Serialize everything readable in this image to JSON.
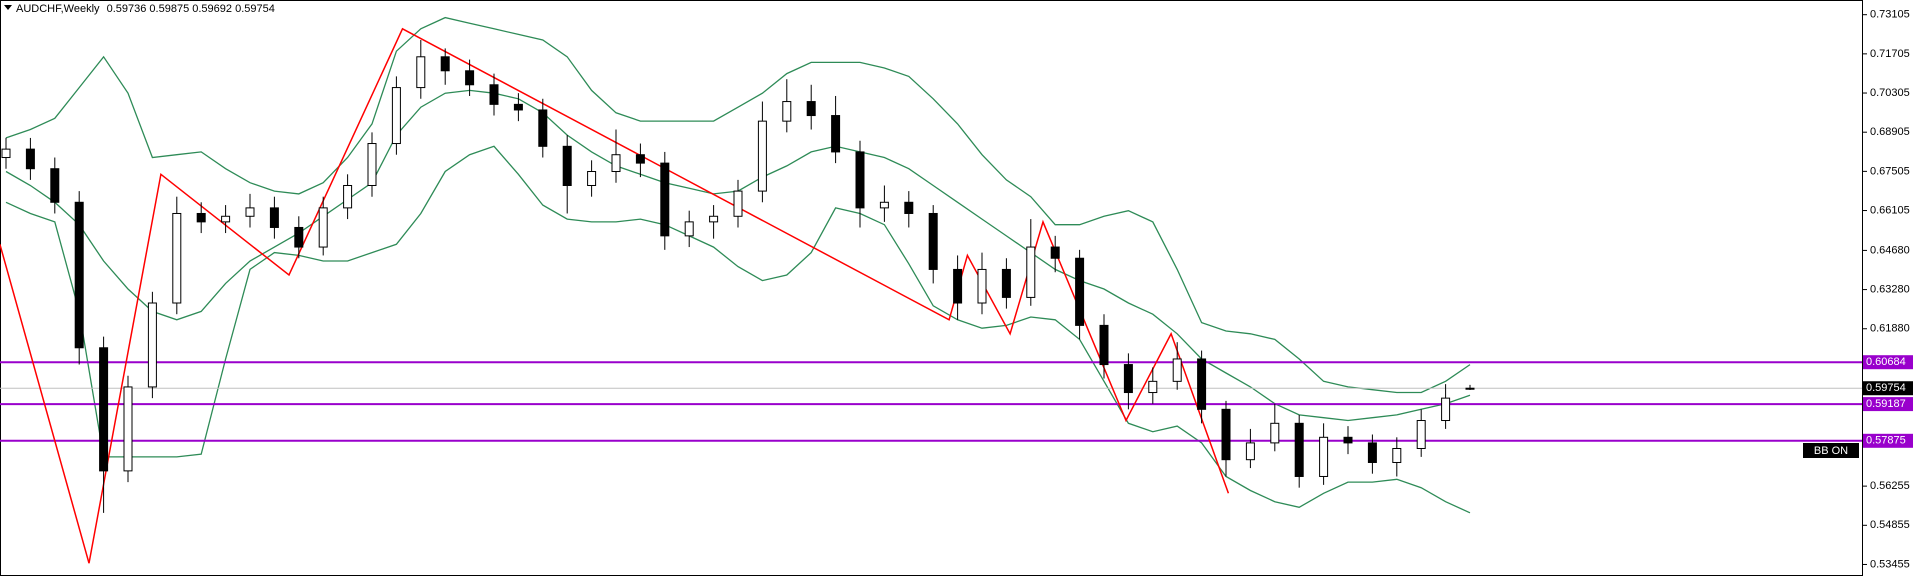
{
  "chart_data": {
    "type": "candlestick",
    "title": "AUDCHF,Weekly",
    "open": [
      0.68,
      0.683,
      0.676,
      0.664,
      0.612,
      0.568,
      0.598,
      0.628,
      0.66,
      0.657,
      0.659,
      0.662,
      0.655,
      0.648,
      0.662,
      0.67,
      0.685,
      0.705,
      0.716,
      0.711,
      0.706,
      0.699,
      0.697,
      0.684,
      0.67,
      0.675,
      0.681,
      0.678,
      0.652,
      0.657,
      0.659,
      0.668,
      0.693,
      0.7,
      0.695,
      0.682,
      0.662,
      0.664,
      0.66,
      0.64,
      0.628,
      0.64,
      0.63,
      0.648,
      0.644,
      0.62,
      0.606,
      0.596,
      0.6,
      0.608,
      0.59,
      0.572,
      0.578,
      0.585,
      0.566,
      0.58,
      0.578,
      0.571,
      0.576,
      0.586,
      0.59736
    ],
    "high": [
      0.687,
      0.687,
      0.68,
      0.668,
      0.616,
      0.602,
      0.632,
      0.666,
      0.664,
      0.663,
      0.667,
      0.666,
      0.659,
      0.666,
      0.674,
      0.689,
      0.709,
      0.722,
      0.719,
      0.715,
      0.71,
      0.703,
      0.701,
      0.688,
      0.679,
      0.69,
      0.685,
      0.682,
      0.661,
      0.663,
      0.672,
      0.7,
      0.708,
      0.706,
      0.702,
      0.686,
      0.67,
      0.668,
      0.663,
      0.645,
      0.646,
      0.644,
      0.658,
      0.652,
      0.647,
      0.624,
      0.61,
      0.605,
      0.614,
      0.611,
      0.593,
      0.583,
      0.592,
      0.588,
      0.585,
      0.584,
      0.581,
      0.58,
      0.59,
      0.599,
      0.59875
    ],
    "low": [
      0.676,
      0.672,
      0.66,
      0.606,
      0.553,
      0.564,
      0.594,
      0.624,
      0.653,
      0.653,
      0.655,
      0.651,
      0.644,
      0.645,
      0.658,
      0.666,
      0.681,
      0.701,
      0.706,
      0.702,
      0.695,
      0.693,
      0.68,
      0.66,
      0.666,
      0.671,
      0.673,
      0.647,
      0.648,
      0.651,
      0.655,
      0.664,
      0.689,
      0.69,
      0.678,
      0.655,
      0.657,
      0.655,
      0.635,
      0.622,
      0.624,
      0.626,
      0.627,
      0.639,
      0.615,
      0.601,
      0.59,
      0.592,
      0.597,
      0.585,
      0.566,
      0.569,
      0.575,
      0.562,
      0.563,
      0.574,
      0.567,
      0.566,
      0.573,
      0.583,
      0.59692
    ],
    "close": [
      0.683,
      0.676,
      0.664,
      0.612,
      0.568,
      0.598,
      0.628,
      0.66,
      0.657,
      0.659,
      0.662,
      0.655,
      0.648,
      0.662,
      0.67,
      0.685,
      0.705,
      0.716,
      0.711,
      0.706,
      0.699,
      0.697,
      0.684,
      0.67,
      0.675,
      0.681,
      0.678,
      0.652,
      0.657,
      0.659,
      0.668,
      0.693,
      0.7,
      0.695,
      0.682,
      0.662,
      0.664,
      0.66,
      0.64,
      0.628,
      0.64,
      0.63,
      0.648,
      0.644,
      0.62,
      0.606,
      0.596,
      0.6,
      0.608,
      0.59,
      0.572,
      0.578,
      0.585,
      0.566,
      0.58,
      0.578,
      0.571,
      0.576,
      0.586,
      0.594,
      0.59754
    ],
    "up_color": "#ffffff",
    "down_color": "#000000",
    "bands": {
      "color": "#2e8b57",
      "upper": [
        0.687,
        0.69,
        0.694,
        0.705,
        0.716,
        0.703,
        0.68,
        0.681,
        0.682,
        0.676,
        0.671,
        0.668,
        0.667,
        0.671,
        0.68,
        0.692,
        0.718,
        0.726,
        0.73,
        0.728,
        0.726,
        0.724,
        0.722,
        0.716,
        0.704,
        0.696,
        0.693,
        0.693,
        0.693,
        0.693,
        0.698,
        0.703,
        0.71,
        0.714,
        0.714,
        0.714,
        0.712,
        0.709,
        0.701,
        0.692,
        0.681,
        0.672,
        0.666,
        0.656,
        0.656,
        0.659,
        0.661,
        0.657,
        0.64,
        0.621,
        0.618,
        0.617,
        0.615,
        0.608,
        0.6,
        0.598,
        0.597,
        0.596,
        0.596,
        0.6,
        0.606
      ],
      "middle": [
        0.675,
        0.67,
        0.664,
        0.656,
        0.643,
        0.633,
        0.625,
        0.622,
        0.625,
        0.635,
        0.643,
        0.648,
        0.653,
        0.659,
        0.665,
        0.671,
        0.688,
        0.698,
        0.703,
        0.704,
        0.703,
        0.701,
        0.696,
        0.688,
        0.682,
        0.677,
        0.674,
        0.671,
        0.669,
        0.667,
        0.668,
        0.673,
        0.677,
        0.682,
        0.684,
        0.682,
        0.68,
        0.676,
        0.67,
        0.664,
        0.658,
        0.652,
        0.646,
        0.64,
        0.636,
        0.633,
        0.628,
        0.624,
        0.617,
        0.608,
        0.603,
        0.598,
        0.592,
        0.588,
        0.587,
        0.586,
        0.587,
        0.588,
        0.59,
        0.592,
        0.595
      ],
      "lower": [
        0.664,
        0.66,
        0.657,
        0.625,
        0.573,
        0.573,
        0.573,
        0.573,
        0.574,
        0.608,
        0.64,
        0.646,
        0.645,
        0.643,
        0.643,
        0.646,
        0.649,
        0.66,
        0.675,
        0.681,
        0.684,
        0.674,
        0.663,
        0.658,
        0.657,
        0.657,
        0.658,
        0.656,
        0.652,
        0.648,
        0.641,
        0.636,
        0.638,
        0.646,
        0.662,
        0.66,
        0.656,
        0.642,
        0.627,
        0.622,
        0.619,
        0.62,
        0.623,
        0.622,
        0.615,
        0.6,
        0.585,
        0.582,
        0.584,
        0.578,
        0.566,
        0.561,
        0.557,
        0.555,
        0.56,
        0.564,
        0.564,
        0.565,
        0.562,
        0.557,
        0.553
      ]
    },
    "zigzag": {
      "color": "#ff0000",
      "x": [
        -0.25,
        3.4,
        6.35,
        11.6,
        16.25,
        38.65,
        39.4,
        41.15,
        42.5,
        45.9,
        47.75,
        50.1
      ],
      "values": [
        0.649,
        0.535,
        0.674,
        0.638,
        0.726,
        0.622,
        0.645,
        0.617,
        0.657,
        0.586,
        0.617,
        0.56
      ]
    },
    "levels": [
      0.60684,
      0.59187,
      0.57875
    ],
    "level_color": "#9900cc",
    "ylim": [
      0.5315,
      0.7363
    ],
    "yticks": [
      0.73105,
      0.71705,
      0.70305,
      0.68905,
      0.67505,
      0.66105,
      {
        "value": 0.6468,
        "label": "0.64680"
      },
      {
        "value": 0.6328,
        "label": "0.63280"
      },
      {
        "value": 0.6188,
        "label": "0.61880"
      },
      0.56255,
      0.54855,
      0.53455
    ],
    "indicator_label": "BB ON"
  }
}
